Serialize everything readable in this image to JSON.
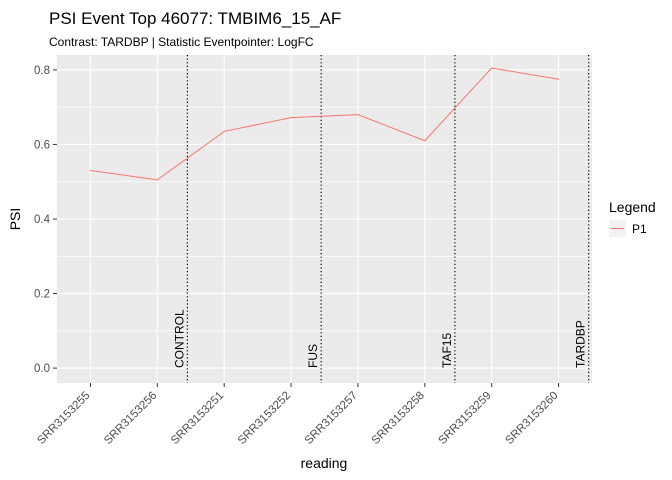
{
  "chart_data": {
    "type": "line",
    "title": "PSI Event Top 46077: TMBIM6_15_AF",
    "subtitle": "Contrast: TARDBP | Statistic Eventpointer: LogFC",
    "xlabel": "reading",
    "ylabel": "PSI",
    "categories": [
      "SRR3153255",
      "SRR3153256",
      "SRR3153251",
      "SRR3153252",
      "SRR3153257",
      "SRR3153258",
      "SRR3153259",
      "SRR3153260"
    ],
    "y_ticks": [
      "0.0",
      "0.2",
      "0.4",
      "0.6",
      "0.8"
    ],
    "ylim": [
      -0.04,
      0.84
    ],
    "grid": true,
    "series": [
      {
        "name": "P1",
        "color": "#F8766D",
        "values": [
          0.53,
          0.505,
          0.635,
          0.672,
          0.68,
          0.61,
          0.805,
          0.775
        ]
      }
    ],
    "group_lines": [
      {
        "label": "CONTROL",
        "after_index": 1
      },
      {
        "label": "FUS",
        "after_index": 3
      },
      {
        "label": "TAF15",
        "after_index": 5
      },
      {
        "label": "TARDBP",
        "after_index": 7
      }
    ],
    "legend": {
      "title": "Legend",
      "position": "right"
    },
    "colors": {
      "panel": "#EBEBEB",
      "grid": "#FFFFFF",
      "line": "#F8766D"
    }
  }
}
